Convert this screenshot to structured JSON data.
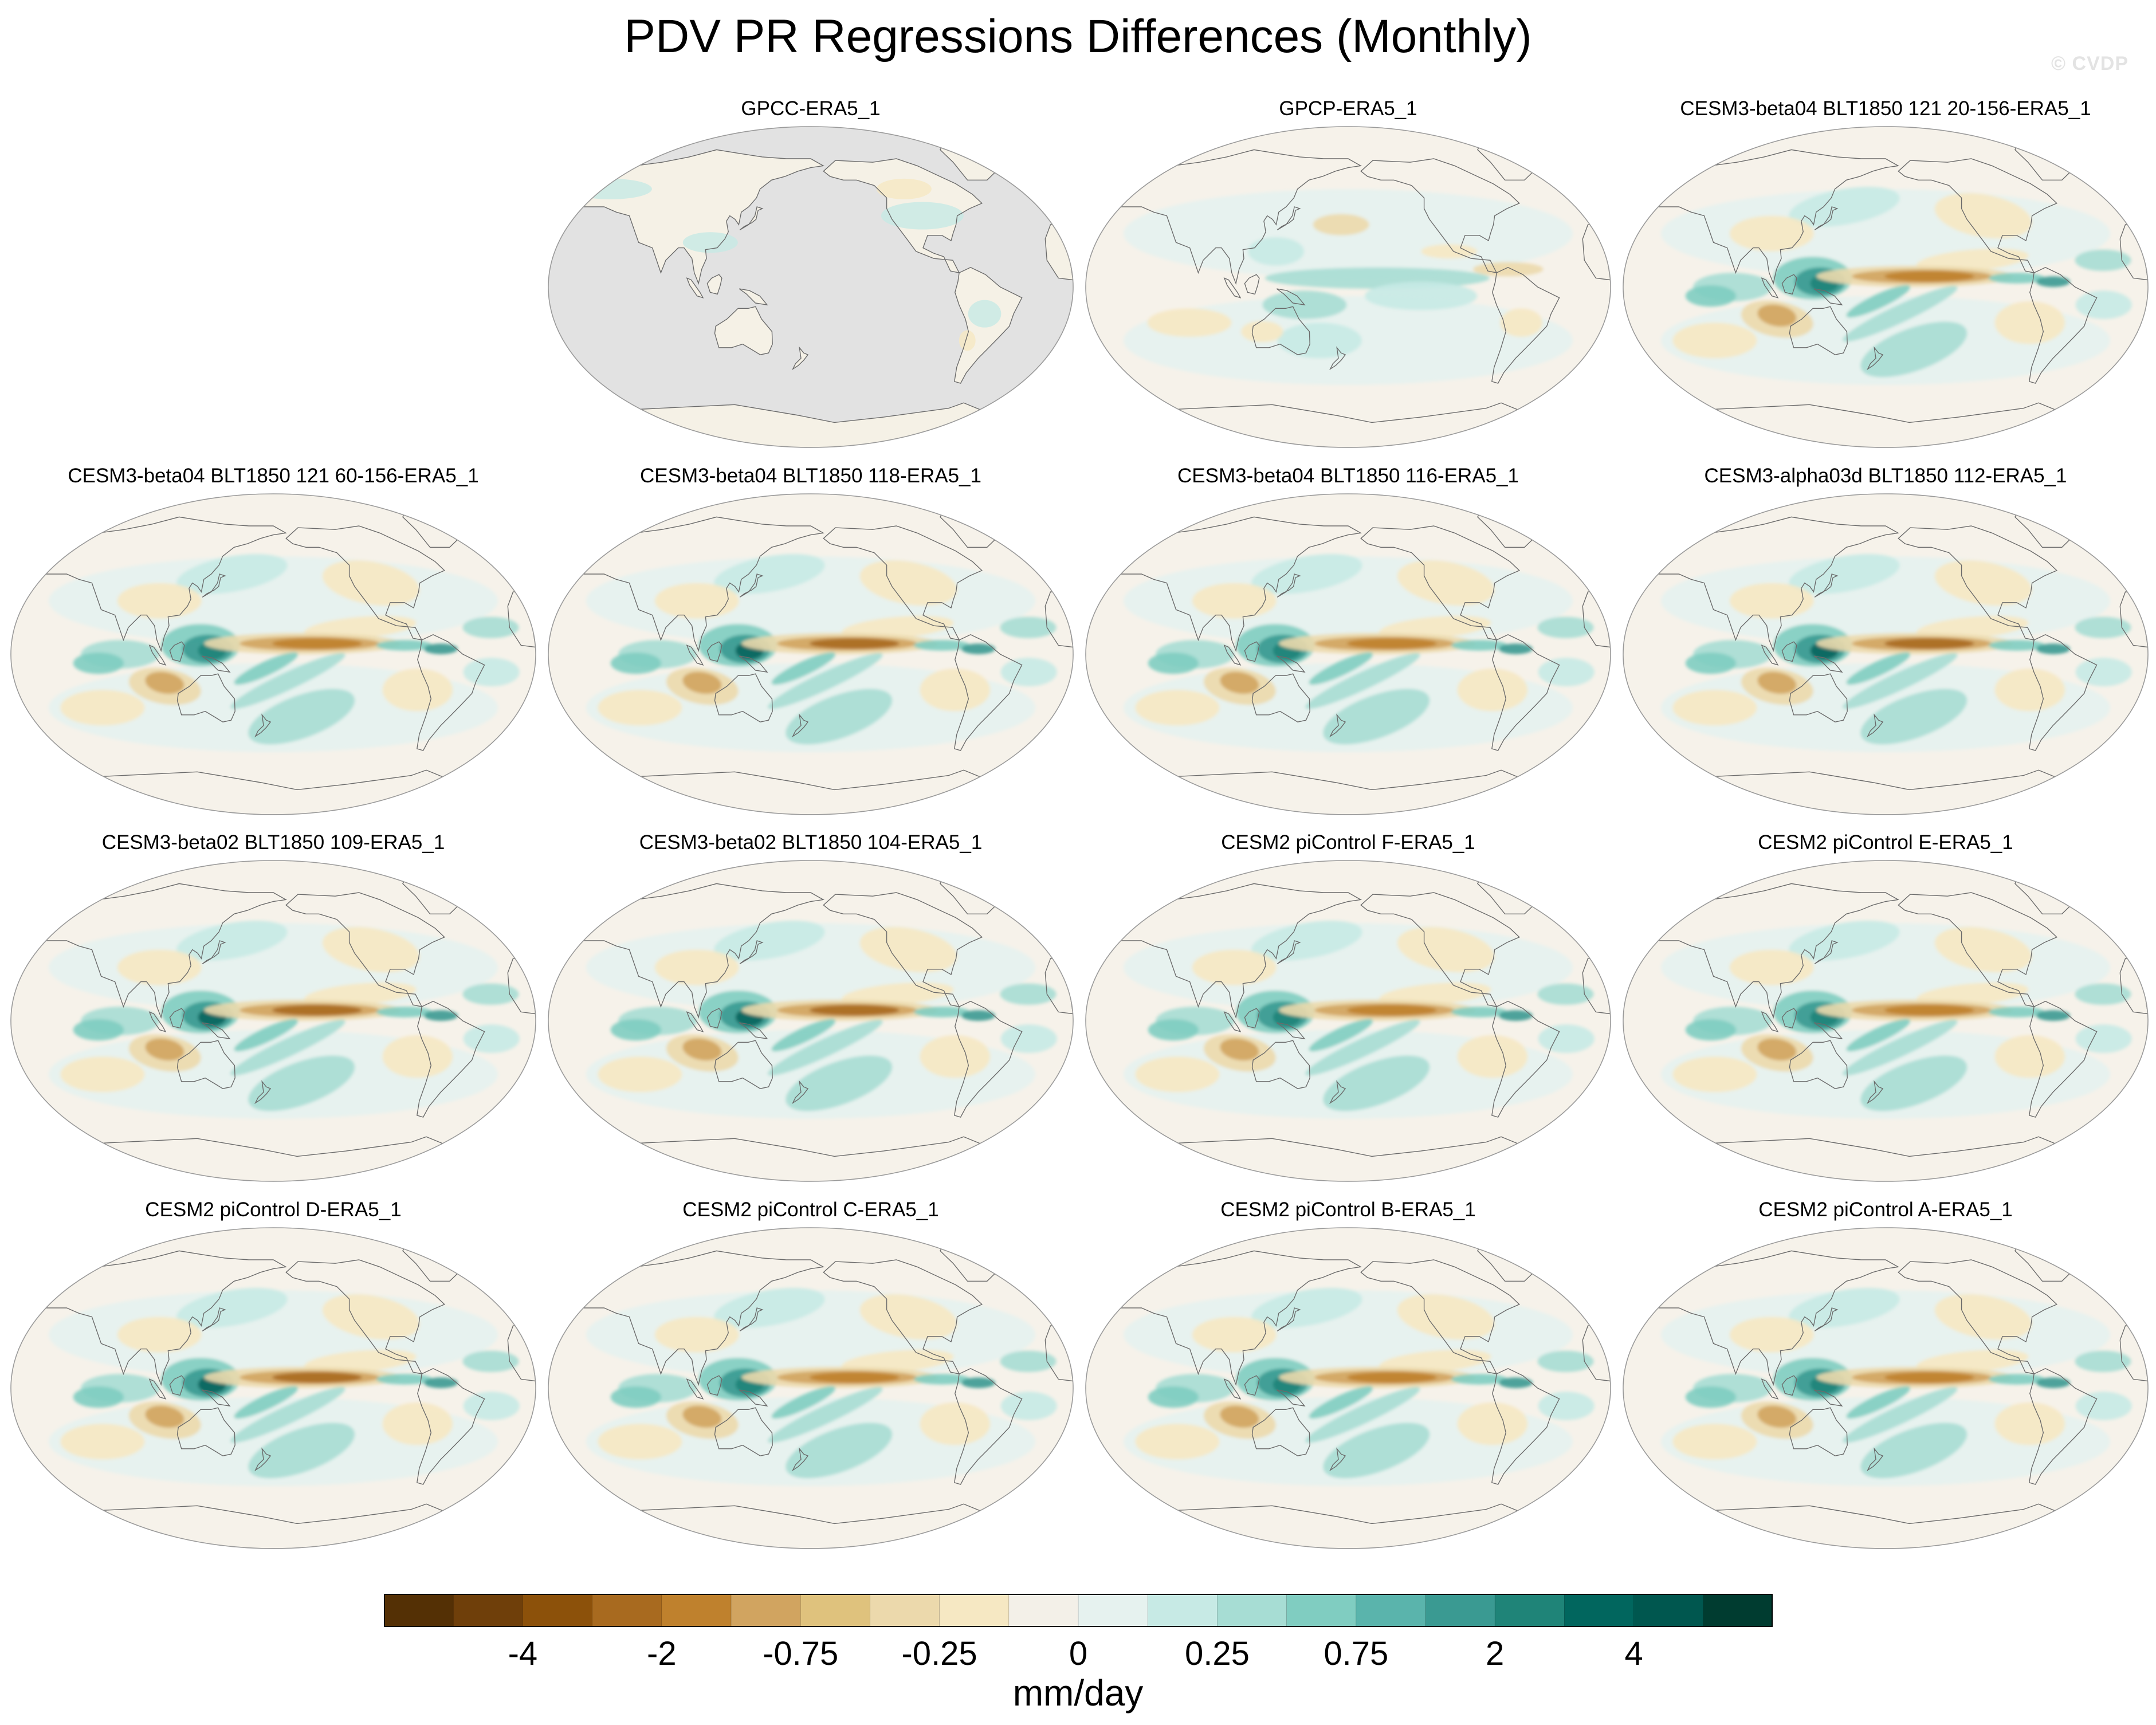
{
  "figure": {
    "title": "PDV PR Regressions Differences (Monthly)",
    "watermark": "© CVDP"
  },
  "panels": [
    {
      "title": "GPCC-ERA5_1",
      "style": "land_only"
    },
    {
      "title": "GPCP-ERA5_1",
      "style": "obs"
    },
    {
      "title": "CESM3-beta04 BLT1850 121 20-156-ERA5_1",
      "style": "model",
      "strength": 0.8
    },
    {
      "title": "CESM3-beta04 BLT1850 121 60-156-ERA5_1",
      "style": "model",
      "strength": 0.75
    },
    {
      "title": "CESM3-beta04 BLT1850 118-ERA5_1",
      "style": "model",
      "strength": 0.95
    },
    {
      "title": "CESM3-beta04 BLT1850 116-ERA5_1",
      "style": "model",
      "strength": 0.8
    },
    {
      "title": "CESM3-alpha03d BLT1850 112-ERA5_1",
      "style": "model",
      "strength": 1.0
    },
    {
      "title": "CESM3-beta02 BLT1850 109-ERA5_1",
      "style": "model",
      "strength": 0.95
    },
    {
      "title": "CESM3-beta02 BLT1850 104-ERA5_1",
      "style": "model",
      "strength": 0.95
    },
    {
      "title": "CESM2 piControl F-ERA5_1",
      "style": "model",
      "strength": 0.85
    },
    {
      "title": "CESM2 piControl E-ERA5_1",
      "style": "model",
      "strength": 0.85
    },
    {
      "title": "CESM2 piControl D-ERA5_1",
      "style": "model",
      "strength": 0.9
    },
    {
      "title": "CESM2 piControl C-ERA5_1",
      "style": "model",
      "strength": 0.85
    },
    {
      "title": "CESM2 piControl B-ERA5_1",
      "style": "model",
      "strength": 0.85
    },
    {
      "title": "CESM2 piControl A-ERA5_1",
      "style": "model",
      "strength": 0.8
    }
  ],
  "colorbar": {
    "units": "mm/day",
    "colors": [
      "#543005",
      "#6f3f0a",
      "#8c510a",
      "#a86a1f",
      "#bf812d",
      "#d1a460",
      "#dfc27d",
      "#ecd9ac",
      "#f6e8c3",
      "#f3f0e8",
      "#e6f2ef",
      "#c7eae5",
      "#a7ddd4",
      "#80cdc1",
      "#5ab4ac",
      "#3a9a92",
      "#1f8478",
      "#01665e",
      "#00574f",
      "#003c30"
    ],
    "tick_labels": [
      "-4",
      "-2",
      "-0.75",
      "-0.25",
      "0",
      "0.25",
      "0.75",
      "2",
      "4"
    ],
    "tick_boundaries": [
      2,
      4,
      6,
      8,
      10,
      12,
      14,
      16,
      18
    ]
  }
}
